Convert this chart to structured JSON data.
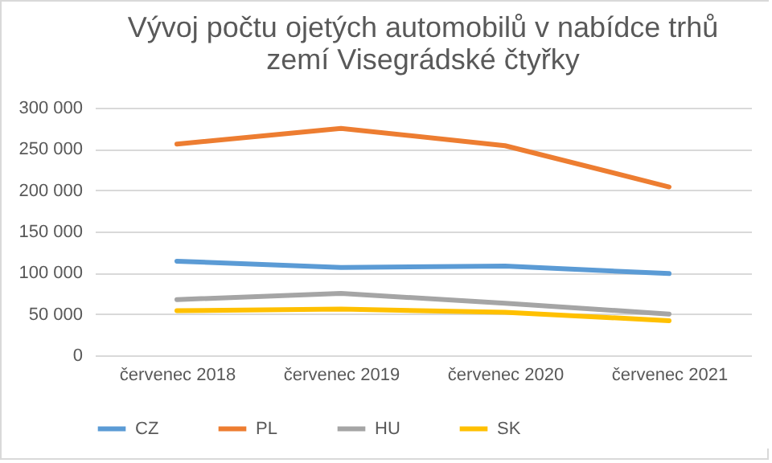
{
  "chart_data": {
    "type": "line",
    "title": [
      "Vývoj počtu ojetých automobilů v nabídce trhů",
      "zemí Visegrádské čtyřky"
    ],
    "categories": [
      "červenec 2018",
      "červenec 2019",
      "červenec 2020",
      "červenec 2021"
    ],
    "series": [
      {
        "name": "CZ",
        "color": "#5b9bd5",
        "values": [
          114000,
          106500,
          108000,
          99000
        ]
      },
      {
        "name": "PL",
        "color": "#ed7d31",
        "values": [
          256000,
          275000,
          254000,
          204000
        ]
      },
      {
        "name": "HU",
        "color": "#a5a5a5",
        "values": [
          67500,
          75000,
          63000,
          50000
        ]
      },
      {
        "name": "SK",
        "color": "#ffc000",
        "values": [
          54000,
          56000,
          52000,
          42000
        ]
      }
    ],
    "ylim": [
      0,
      300000
    ],
    "yticks": [
      0,
      50000,
      100000,
      150000,
      200000,
      250000,
      300000
    ],
    "grid": "y",
    "legend": "bottom",
    "marker": "none",
    "line_style": "solid"
  }
}
